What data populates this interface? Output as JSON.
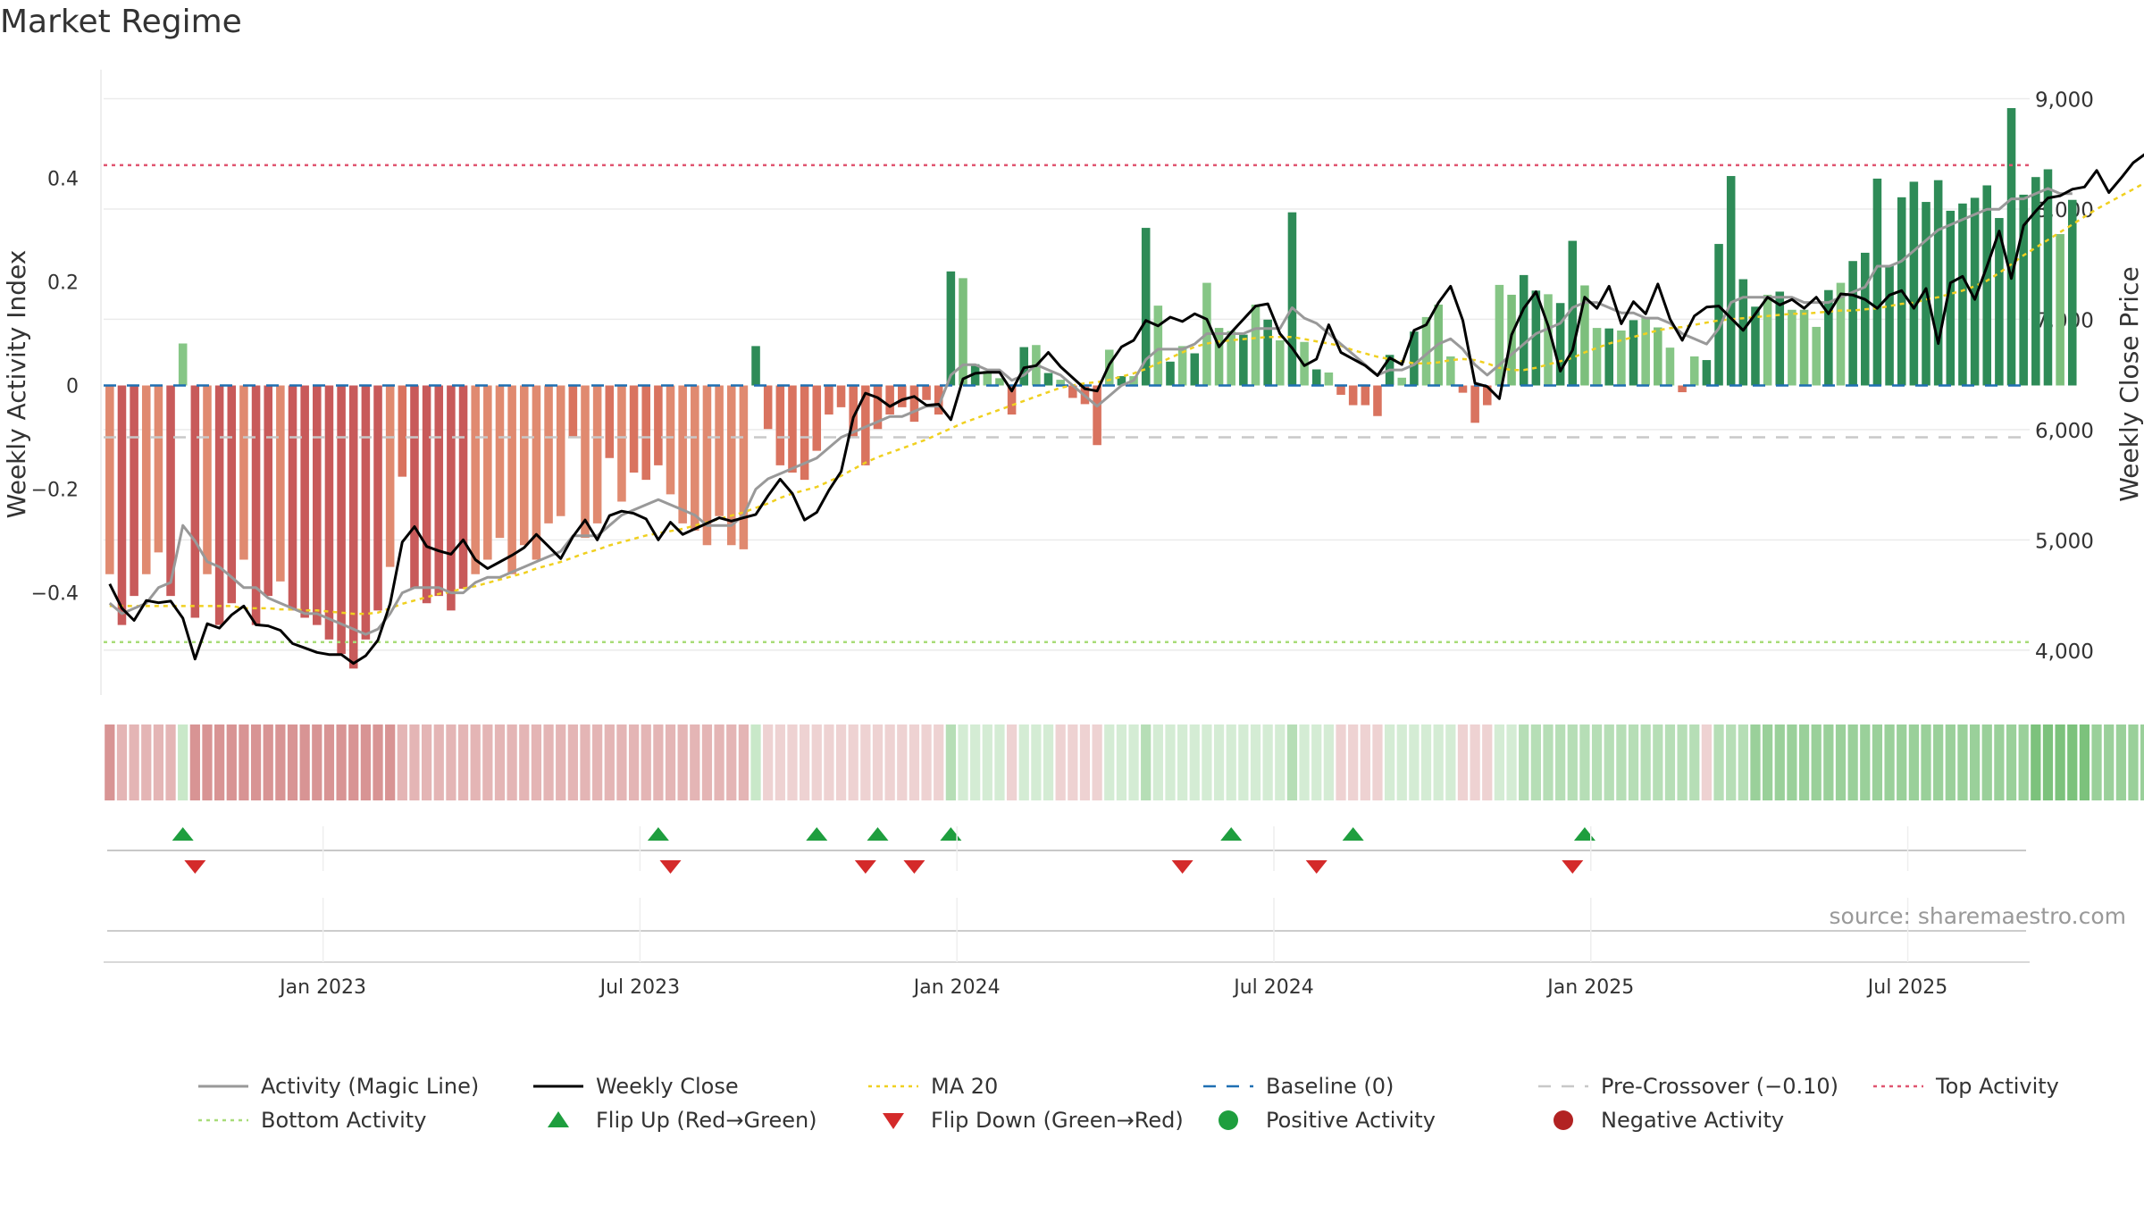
{
  "title": "Market Regime",
  "source": "source: sharemaestro.com",
  "colors": {
    "magic_line": "#999999",
    "weekly_close": "#000000",
    "ma20": "#f0d020",
    "baseline": "#1f6fb2",
    "pre_crossover": "#c8c8c8",
    "top_activity": "#e05570",
    "bottom_activity": "#a8dc78",
    "flip_up": "#1e9e3e",
    "flip_down": "#d42a2a",
    "positive": "#1e9e3e",
    "negative": "#b22222"
  },
  "legend": [
    {
      "key": "magic",
      "label": "Activity (Magic Line)",
      "symbol": "line",
      "color": "#999999"
    },
    {
      "key": "close",
      "label": "Weekly Close",
      "symbol": "line",
      "color": "#000000"
    },
    {
      "key": "ma",
      "label": "MA 20",
      "symbol": "dotted",
      "color": "#f0d020"
    },
    {
      "key": "base",
      "label": "Baseline (0)",
      "symbol": "dashed",
      "color": "#1f6fb2"
    },
    {
      "key": "pre",
      "label": "Pre-Crossover (−0.10)",
      "symbol": "dashed",
      "color": "#c8c8c8"
    },
    {
      "key": "top",
      "label": "Top Activity",
      "symbol": "dotted",
      "color": "#e05570"
    },
    {
      "key": "bottom",
      "label": "Bottom Activity",
      "symbol": "dotted",
      "color": "#a8dc78"
    },
    {
      "key": "up",
      "label": "Flip Up (Red→Green)",
      "symbol": "tri-up",
      "color": "#1e9e3e"
    },
    {
      "key": "down",
      "label": "Flip Down (Green→Red)",
      "symbol": "tri-down",
      "color": "#d42a2a"
    },
    {
      "key": "pos",
      "label": "Positive Activity",
      "symbol": "dot",
      "color": "#1e9e3e"
    },
    {
      "key": "neg",
      "label": "Negative Activity",
      "symbol": "dot",
      "color": "#b22222"
    }
  ],
  "chart_data": {
    "type": "bar",
    "title": "Market Regime",
    "ylabel_left": "Weekly Activity Index",
    "ylabel_right": "Weekly Close Price",
    "ylim_left": [
      -0.585,
      0.585
    ],
    "ylim_right": [
      3650,
      9150
    ],
    "left_ticks": [
      0.4,
      0.2,
      0,
      -0.2,
      -0.4
    ],
    "left_tick_labels": [
      "0.4",
      "0.2",
      "0",
      "−0.2",
      "−0.4"
    ],
    "right_ticks": [
      9000,
      8000,
      7000,
      6000,
      5000,
      4000
    ],
    "right_tick_labels": [
      "9,000",
      "8,000",
      "7,000",
      "6,000",
      "5,000",
      "4,000"
    ],
    "x_tick_labels": [
      {
        "label": "Jan 2023",
        "week": 18
      },
      {
        "label": "Jul 2023",
        "week": 44
      },
      {
        "label": "Jan 2024",
        "week": 70
      },
      {
        "label": "Jul 2024",
        "week": 96
      },
      {
        "label": "Jan 2025",
        "week": 122
      },
      {
        "label": "Jul 2025",
        "week": 148
      }
    ],
    "n_weeks": 158,
    "top_activity": 0.425,
    "bottom_activity": -0.495,
    "pre_crossover": -0.1,
    "baseline": 0,
    "grid": true,
    "legend_position": "bottom",
    "series": [
      {
        "name": "Weekly Activity Index",
        "kind": "bar",
        "values": [
          -0.364,
          -0.462,
          -0.406,
          -0.364,
          -0.322,
          -0.406,
          0.081,
          -0.448,
          -0.364,
          -0.462,
          -0.42,
          -0.336,
          -0.462,
          -0.406,
          -0.378,
          -0.434,
          -0.448,
          -0.462,
          -0.49,
          -0.518,
          -0.546,
          -0.49,
          -0.434,
          -0.35,
          -0.176,
          -0.392,
          -0.42,
          -0.406,
          -0.434,
          -0.392,
          -0.364,
          -0.336,
          -0.294,
          -0.364,
          -0.308,
          -0.336,
          -0.266,
          -0.252,
          -0.098,
          -0.294,
          -0.266,
          -0.14,
          -0.224,
          -0.168,
          -0.182,
          -0.154,
          -0.21,
          -0.266,
          -0.28,
          -0.308,
          -0.252,
          -0.308,
          -0.316,
          0.076,
          -0.084,
          -0.154,
          -0.168,
          -0.182,
          -0.126,
          -0.056,
          -0.042,
          -0.098,
          -0.154,
          -0.084,
          -0.056,
          -0.042,
          -0.07,
          -0.028,
          -0.056,
          0.22,
          0.207,
          0.041,
          0.028,
          0.014,
          -0.056,
          0.074,
          0.078,
          0.024,
          0.011,
          -0.024,
          -0.036,
          -0.115,
          0.069,
          0.018,
          0.018,
          0.304,
          0.154,
          0.046,
          0.076,
          0.062,
          0.198,
          0.111,
          0.105,
          0.098,
          0.156,
          0.127,
          0.087,
          0.334,
          0.084,
          0.031,
          0.025,
          -0.018,
          -0.038,
          -0.038,
          -0.059,
          0.059,
          0.015,
          0.104,
          0.132,
          0.156,
          0.056,
          -0.014,
          -0.072,
          -0.038,
          0.194,
          0.175,
          0.213,
          0.183,
          0.176,
          0.159,
          0.279,
          0.193,
          0.111,
          0.11,
          0.106,
          0.126,
          0.132,
          0.112,
          0.073,
          -0.013,
          0.056,
          0.049,
          0.273,
          0.404,
          0.205,
          0.152,
          0.175,
          0.181,
          0.146,
          0.146,
          0.113,
          0.184,
          0.198,
          0.24,
          0.256,
          0.399,
          0.231,
          0.363,
          0.393,
          0.354,
          0.396,
          0.337,
          0.351,
          0.362,
          0.386,
          0.323,
          0.535,
          0.368,
          0.402,
          0.417,
          0.292,
          0.358
        ]
      },
      {
        "name": "Weekly Close",
        "kind": "line",
        "values": [
          4600,
          4380,
          4270,
          4450,
          4430,
          4445,
          4290,
          3920,
          4240,
          4200,
          4320,
          4400,
          4230,
          4220,
          4180,
          4060,
          4020,
          3980,
          3960,
          3960,
          3880,
          3950,
          4090,
          4420,
          4980,
          5120,
          4940,
          4900,
          4870,
          5000,
          4820,
          4740,
          4800,
          4860,
          4930,
          5050,
          4940,
          4830,
          5030,
          5180,
          5000,
          5220,
          5260,
          5240,
          5190,
          5000,
          5160,
          5050,
          5100,
          5150,
          5200,
          5170,
          5200,
          5230,
          5400,
          5550,
          5420,
          5180,
          5250,
          5450,
          5620,
          6110,
          6330,
          6290,
          6210,
          6270,
          6300,
          6220,
          6230,
          6090,
          6460,
          6510,
          6520,
          6520,
          6350,
          6560,
          6580,
          6700,
          6570,
          6470,
          6370,
          6350,
          6590,
          6750,
          6810,
          6990,
          6940,
          7020,
          6980,
          7050,
          7000,
          6750,
          6880,
          7000,
          7120,
          7140,
          6870,
          6740,
          6580,
          6640,
          6950,
          6700,
          6640,
          6580,
          6490,
          6650,
          6590,
          6900,
          6950,
          7150,
          7300,
          6990,
          6420,
          6390,
          6280,
          6860,
          7100,
          7250,
          6940,
          6530,
          6720,
          7200,
          7100,
          7300,
          6960,
          7160,
          7050,
          7320,
          7000,
          6810,
          7030,
          7110,
          7120,
          7010,
          6900,
          7050,
          7200,
          7130,
          7180,
          7100,
          7200,
          7050,
          7230,
          7220,
          7180,
          7100,
          7220,
          7260,
          7100,
          7280,
          6780,
          7330,
          7390,
          7180,
          7480,
          7800,
          7370,
          7850,
          7980,
          8100,
          8120,
          8180,
          8200,
          8350,
          8150,
          8280,
          8420,
          8500,
          8490,
          8420,
          8570,
          8280,
          8480,
          8640
        ]
      },
      {
        "name": "Activity (Magic Line)",
        "kind": "line",
        "axis": "left",
        "values": [
          -0.42,
          -0.44,
          -0.43,
          -0.42,
          -0.39,
          -0.38,
          -0.27,
          -0.3,
          -0.34,
          -0.35,
          -0.37,
          -0.39,
          -0.39,
          -0.41,
          -0.42,
          -0.43,
          -0.44,
          -0.44,
          -0.45,
          -0.46,
          -0.47,
          -0.48,
          -0.47,
          -0.44,
          -0.4,
          -0.39,
          -0.39,
          -0.39,
          -0.4,
          -0.4,
          -0.38,
          -0.37,
          -0.37,
          -0.36,
          -0.35,
          -0.34,
          -0.33,
          -0.32,
          -0.29,
          -0.29,
          -0.29,
          -0.27,
          -0.25,
          -0.24,
          -0.23,
          -0.22,
          -0.23,
          -0.24,
          -0.25,
          -0.27,
          -0.27,
          -0.27,
          -0.25,
          -0.2,
          -0.18,
          -0.17,
          -0.16,
          -0.15,
          -0.14,
          -0.12,
          -0.1,
          -0.09,
          -0.08,
          -0.07,
          -0.06,
          -0.06,
          -0.05,
          -0.04,
          -0.04,
          0.02,
          0.04,
          0.04,
          0.03,
          0.03,
          0.01,
          0.02,
          0.04,
          0.03,
          0.02,
          0.0,
          -0.02,
          -0.04,
          -0.02,
          0.0,
          0.01,
          0.05,
          0.07,
          0.07,
          0.07,
          0.08,
          0.1,
          0.1,
          0.1,
          0.1,
          0.11,
          0.11,
          0.11,
          0.15,
          0.13,
          0.12,
          0.1,
          0.08,
          0.06,
          0.04,
          0.02,
          0.03,
          0.03,
          0.04,
          0.06,
          0.08,
          0.09,
          0.07,
          0.04,
          0.02,
          0.04,
          0.06,
          0.08,
          0.1,
          0.11,
          0.12,
          0.15,
          0.16,
          0.16,
          0.15,
          0.14,
          0.14,
          0.13,
          0.13,
          0.12,
          0.1,
          0.09,
          0.08,
          0.11,
          0.16,
          0.17,
          0.17,
          0.17,
          0.17,
          0.17,
          0.16,
          0.16,
          0.16,
          0.17,
          0.18,
          0.19,
          0.23,
          0.23,
          0.24,
          0.26,
          0.28,
          0.3,
          0.31,
          0.32,
          0.33,
          0.34,
          0.34,
          0.36,
          0.36,
          0.37,
          0.38,
          0.37,
          0.37
        ]
      },
      {
        "name": "MA 20",
        "kind": "line",
        "axis": "right",
        "values": [
          4400,
          4400,
          4400,
          4400,
          4400,
          4400,
          4400,
          4400,
          4400,
          4400,
          4400,
          4380,
          4380,
          4380,
          4370,
          4370,
          4360,
          4360,
          4350,
          4340,
          4330,
          4330,
          4340,
          4380,
          4420,
          4450,
          4480,
          4510,
          4530,
          4560,
          4580,
          4610,
          4640,
          4670,
          4700,
          4740,
          4770,
          4800,
          4840,
          4880,
          4910,
          4950,
          4980,
          5010,
          5040,
          5060,
          5080,
          5100,
          5130,
          5160,
          5190,
          5220,
          5250,
          5290,
          5330,
          5380,
          5420,
          5450,
          5480,
          5530,
          5580,
          5640,
          5700,
          5750,
          5790,
          5830,
          5870,
          5910,
          5960,
          6010,
          6060,
          6100,
          6140,
          6180,
          6220,
          6260,
          6300,
          6340,
          6380,
          6400,
          6420,
          6430,
          6450,
          6480,
          6510,
          6550,
          6600,
          6650,
          6700,
          6750,
          6780,
          6800,
          6810,
          6820,
          6830,
          6840,
          6840,
          6840,
          6820,
          6800,
          6780,
          6760,
          6720,
          6690,
          6660,
          6640,
          6620,
          6600,
          6600,
          6610,
          6630,
          6640,
          6630,
          6600,
          6560,
          6540,
          6540,
          6560,
          6590,
          6620,
          6650,
          6700,
          6740,
          6780,
          6810,
          6840,
          6870,
          6900,
          6920,
          6930,
          6950,
          6970,
          6990,
          7000,
          7010,
          7020,
          7030,
          7040,
          7050,
          7050,
          7060,
          7070,
          7080,
          7080,
          7090,
          7100,
          7120,
          7140,
          7150,
          7180,
          7200,
          7230,
          7260,
          7300,
          7350,
          7420,
          7500,
          7580,
          7650,
          7720,
          7790,
          7860,
          7930,
          8000,
          8060,
          8120,
          8180,
          8240,
          8290,
          8330,
          8370,
          8410,
          8450,
          8490
        ]
      }
    ],
    "regime_strip_shades": [
      3,
      2,
      2,
      2,
      2,
      2,
      0,
      3,
      3,
      3,
      3,
      3,
      3,
      3,
      3,
      3,
      3,
      3,
      3,
      3,
      3,
      3,
      3,
      3,
      2,
      2,
      2,
      2,
      2,
      2,
      2,
      2,
      2,
      2,
      2,
      2,
      2,
      2,
      2,
      2,
      2,
      2,
      2,
      2,
      2,
      2,
      2,
      2,
      2,
      2,
      2,
      2,
      2,
      0,
      1,
      1,
      1,
      1,
      1,
      1,
      1,
      1,
      1,
      1,
      1,
      1,
      1,
      1,
      1,
      -2,
      -1,
      -1,
      -1,
      -1,
      1,
      -1,
      -1,
      -1,
      1,
      1,
      1,
      1,
      -1,
      -1,
      -1,
      -2,
      -1,
      -1,
      -1,
      -1,
      -1,
      -1,
      -1,
      -1,
      -1,
      -1,
      -1,
      -2,
      -1,
      -1,
      -1,
      1,
      1,
      1,
      1,
      -1,
      -1,
      -1,
      -1,
      -1,
      -1,
      1,
      1,
      1,
      -1,
      -1,
      -2,
      -2,
      -2,
      -2,
      -2,
      -2,
      -2,
      -2,
      -2,
      -2,
      -2,
      -2,
      -2,
      -2,
      -2,
      1,
      -2,
      -2,
      -2,
      -3,
      -3,
      -3,
      -3,
      -3,
      -3,
      -3,
      -3,
      -3,
      -3,
      -3,
      -3,
      -3,
      -3,
      -3,
      -3,
      -3,
      -3,
      -3,
      -3,
      -3,
      -3,
      -3,
      -4,
      -4,
      -4,
      -4,
      -4,
      -3,
      -3,
      -3,
      -3,
      -3,
      -3,
      -3
    ],
    "flip_up_weeks": [
      6,
      45,
      58,
      63,
      69,
      92,
      102,
      121
    ],
    "flip_down_weeks": [
      7,
      46,
      62,
      66,
      88,
      99,
      120
    ]
  }
}
